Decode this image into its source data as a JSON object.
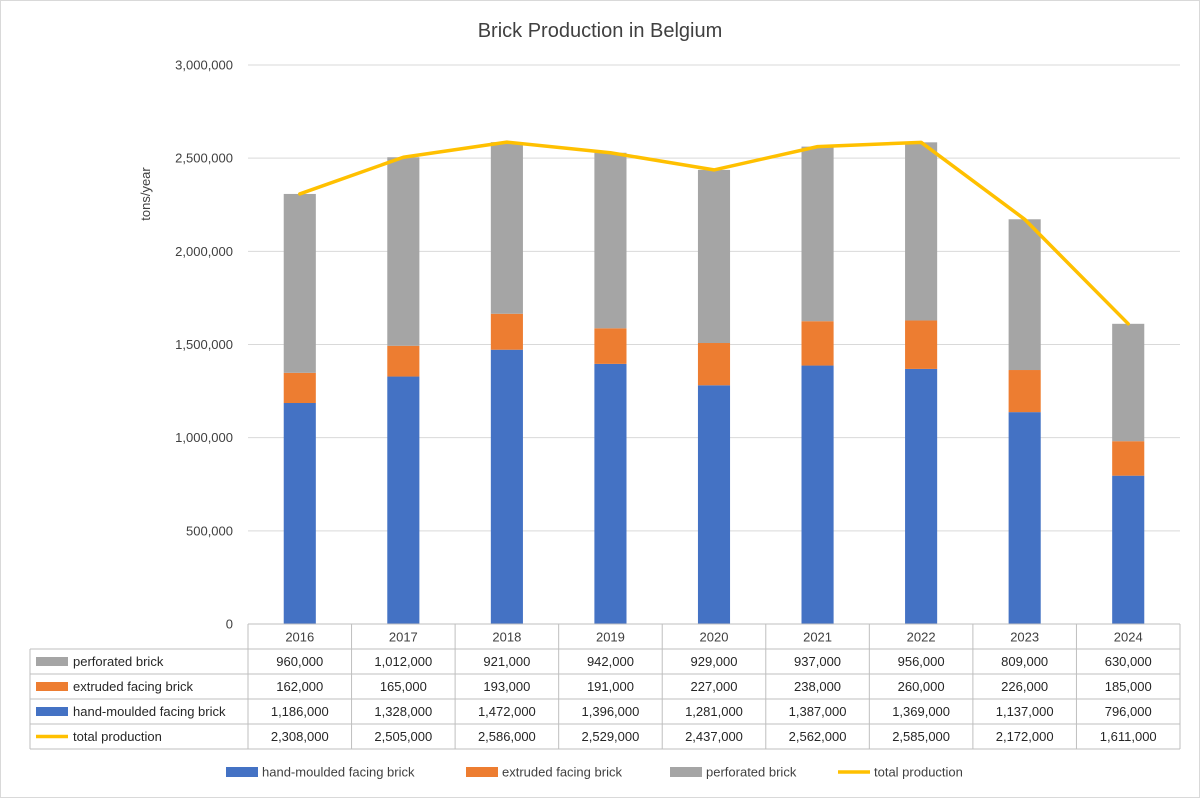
{
  "chart_data": {
    "type": "bar",
    "stacked": true,
    "title": "Brick Production in Belgium",
    "ylabel": "tons/year",
    "ylim": [
      0,
      3000000
    ],
    "yticks": [
      "0",
      "500,000",
      "1,000,000",
      "1,500,000",
      "2,000,000",
      "2,500,000",
      "3,000,000"
    ],
    "grid": true,
    "legend_position": "bottom",
    "data_table": true,
    "categories": [
      "2016",
      "2017",
      "2018",
      "2019",
      "2020",
      "2021",
      "2022",
      "2023",
      "2024"
    ],
    "series": [
      {
        "name": "hand-moulded facing brick",
        "kind": "bar",
        "color": "#4472C4",
        "values": [
          1186000,
          1328000,
          1472000,
          1396000,
          1281000,
          1387000,
          1369000,
          1137000,
          796000
        ],
        "labels": [
          "1,186,000",
          "1,328,000",
          "1,472,000",
          "1,396,000",
          "1,281,000",
          "1,387,000",
          "1,369,000",
          "1,137,000",
          "796,000"
        ]
      },
      {
        "name": "extruded facing brick",
        "kind": "bar",
        "color": "#ED7D31",
        "values": [
          162000,
          165000,
          193000,
          191000,
          227000,
          238000,
          260000,
          226000,
          185000
        ],
        "labels": [
          "162,000",
          "165,000",
          "193,000",
          "191,000",
          "227,000",
          "238,000",
          "260,000",
          "226,000",
          "185,000"
        ]
      },
      {
        "name": "perforated brick",
        "kind": "bar",
        "color": "#A5A5A5",
        "values": [
          960000,
          1012000,
          921000,
          942000,
          929000,
          937000,
          956000,
          809000,
          630000
        ],
        "labels": [
          "960,000",
          "1,012,000",
          "921,000",
          "942,000",
          "929,000",
          "937,000",
          "956,000",
          "809,000",
          "630,000"
        ]
      },
      {
        "name": "total production",
        "kind": "line",
        "color": "#FFC000",
        "values": [
          2308000,
          2505000,
          2586000,
          2529000,
          2437000,
          2562000,
          2585000,
          2172000,
          1611000
        ],
        "labels": [
          "2,308,000",
          "2,505,000",
          "2,586,000",
          "2,529,000",
          "2,437,000",
          "2,562,000",
          "2,585,000",
          "2,172,000",
          "1,611,000"
        ]
      }
    ],
    "table_row_order": [
      "perforated brick",
      "extruded facing brick",
      "hand-moulded facing brick",
      "total production"
    ],
    "legend_order": [
      "hand-moulded facing brick",
      "extruded facing brick",
      "perforated brick",
      "total production"
    ]
  }
}
